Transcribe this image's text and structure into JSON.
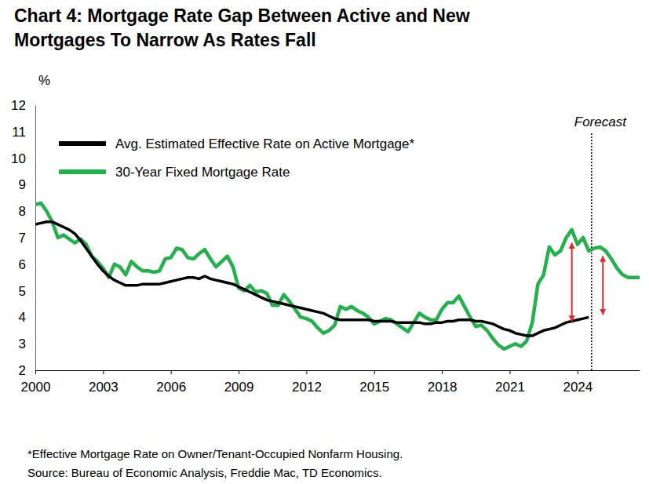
{
  "chart_data": {
    "type": "line",
    "title": [
      "Chart 4: Mortgage Rate Gap Between Active and New",
      "Mortgages To Narrow As Rates Fall"
    ],
    "y_label": "%",
    "footnotes": [
      "*Effective Mortgage Rate on Owner/Tenant-Occupied Nonfarm Housing.",
      "Source: Bureau of Economic Analysis, Freddie Mac, TD Economics."
    ],
    "annotations": [
      {
        "text": "Forecast",
        "x": 2024.625
      }
    ],
    "arrows": [
      {
        "x": 2023.75,
        "y1": 3.85,
        "y2": 6.8,
        "color": "#e8262a"
      },
      {
        "x": 2025.125,
        "y1": 4.1,
        "y2": 6.3,
        "color": "#e8262a"
      }
    ],
    "legend": "upper left",
    "grid": false,
    "xlim": [
      2000,
      2026.75
    ],
    "ylim": [
      2,
      12
    ],
    "xticks": [
      2000,
      2003,
      2006,
      2009,
      2012,
      2015,
      2018,
      2021,
      2024
    ],
    "yticks": [
      2,
      3,
      4,
      5,
      6,
      7,
      8,
      9,
      10,
      11,
      12
    ],
    "x": [
      2000,
      2000.25,
      2000.5,
      2000.75,
      2001,
      2001.25,
      2001.5,
      2001.75,
      2002,
      2002.25,
      2002.5,
      2002.75,
      2003,
      2003.25,
      2003.5,
      2003.75,
      2004,
      2004.25,
      2004.5,
      2004.75,
      2005,
      2005.25,
      2005.5,
      2005.75,
      2006,
      2006.25,
      2006.5,
      2006.75,
      2007,
      2007.25,
      2007.5,
      2007.75,
      2008,
      2008.25,
      2008.5,
      2008.75,
      2009,
      2009.25,
      2009.5,
      2009.75,
      2010,
      2010.25,
      2010.5,
      2010.75,
      2011,
      2011.25,
      2011.5,
      2011.75,
      2012,
      2012.25,
      2012.5,
      2012.75,
      2013,
      2013.25,
      2013.5,
      2013.75,
      2014,
      2014.25,
      2014.5,
      2014.75,
      2015,
      2015.25,
      2015.5,
      2015.75,
      2016,
      2016.25,
      2016.5,
      2016.75,
      2017,
      2017.25,
      2017.5,
      2017.75,
      2018,
      2018.25,
      2018.5,
      2018.75,
      2019,
      2019.25,
      2019.5,
      2019.75,
      2020,
      2020.25,
      2020.5,
      2020.75,
      2021,
      2021.25,
      2021.5,
      2021.75,
      2022,
      2022.25,
      2022.5,
      2022.75,
      2023,
      2023.25,
      2023.5,
      2023.75,
      2024,
      2024.25,
      2024.5,
      2024.75,
      2025,
      2025.25,
      2025.5,
      2025.75,
      2026,
      2026.25,
      2026.5,
      2026.75
    ],
    "series": [
      {
        "name": "Avg. Estimated Effective Rate on Active Mortgage*",
        "color": "#000000",
        "values": [
          7.5,
          7.55,
          7.6,
          7.6,
          7.5,
          7.4,
          7.3,
          7.15,
          6.9,
          6.6,
          6.3,
          6.0,
          5.75,
          5.55,
          5.4,
          5.3,
          5.2,
          5.2,
          5.2,
          5.25,
          5.25,
          5.25,
          5.25,
          5.3,
          5.35,
          5.4,
          5.45,
          5.5,
          5.5,
          5.45,
          5.55,
          5.45,
          5.4,
          5.35,
          5.3,
          5.25,
          5.15,
          5.05,
          4.95,
          4.85,
          4.75,
          4.65,
          4.6,
          4.55,
          4.5,
          4.45,
          4.4,
          4.35,
          4.3,
          4.25,
          4.2,
          4.15,
          4.05,
          3.95,
          3.9,
          3.9,
          3.9,
          3.9,
          3.9,
          3.9,
          3.85,
          3.85,
          3.85,
          3.85,
          3.8,
          3.8,
          3.8,
          3.8,
          3.8,
          3.75,
          3.75,
          3.8,
          3.8,
          3.85,
          3.85,
          3.9,
          3.9,
          3.9,
          3.85,
          3.85,
          3.8,
          3.75,
          3.65,
          3.55,
          3.5,
          3.4,
          3.35,
          3.3,
          3.3,
          3.4,
          3.5,
          3.55,
          3.6,
          3.7,
          3.8,
          3.85,
          3.9,
          3.95,
          4.0,
          null,
          null,
          null,
          null,
          null,
          null,
          null,
          null,
          null
        ]
      },
      {
        "name": "30-Year Fixed Mortgage Rate",
        "color": "#22b14c",
        "values": [
          8.25,
          8.3,
          8.0,
          7.6,
          7.0,
          7.1,
          6.95,
          6.8,
          6.95,
          6.75,
          6.3,
          6.1,
          5.85,
          5.5,
          6.0,
          5.9,
          5.6,
          6.1,
          5.9,
          5.75,
          5.75,
          5.7,
          5.75,
          6.2,
          6.25,
          6.6,
          6.55,
          6.25,
          6.2,
          6.4,
          6.55,
          6.2,
          5.9,
          6.1,
          6.3,
          5.9,
          5.1,
          5.0,
          5.2,
          4.95,
          5.0,
          4.9,
          4.45,
          4.45,
          4.85,
          4.6,
          4.3,
          4.0,
          3.95,
          3.85,
          3.6,
          3.4,
          3.5,
          3.7,
          4.4,
          4.3,
          4.4,
          4.25,
          4.15,
          4.0,
          3.75,
          3.85,
          3.95,
          3.9,
          3.75,
          3.6,
          3.45,
          3.8,
          4.15,
          4.0,
          3.9,
          3.9,
          4.3,
          4.55,
          4.55,
          4.8,
          4.4,
          4.0,
          3.65,
          3.7,
          3.5,
          3.2,
          2.95,
          2.8,
          2.9,
          3.0,
          2.9,
          3.1,
          3.8,
          5.25,
          5.6,
          6.65,
          6.35,
          6.5,
          7.0,
          7.3,
          6.75,
          7.0,
          6.5,
          6.6,
          6.65,
          6.5,
          6.2,
          5.85,
          5.6,
          5.5,
          5.5,
          5.5
        ]
      }
    ]
  }
}
